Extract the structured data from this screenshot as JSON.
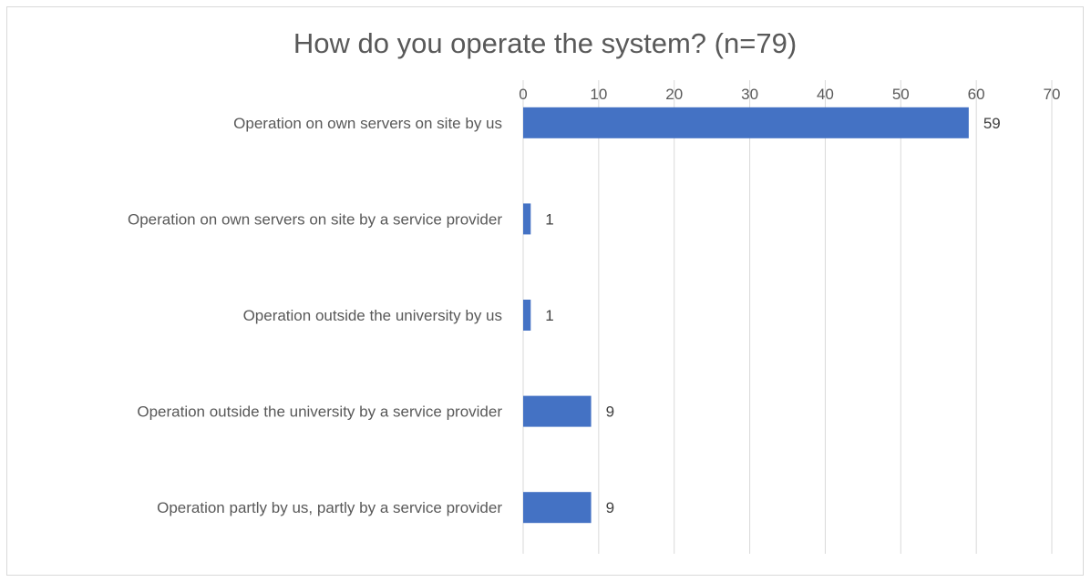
{
  "chart_data": {
    "type": "bar",
    "orientation": "horizontal",
    "title": "How do you operate the system? (n=79)",
    "xlabel": "",
    "ylabel": "",
    "xlim": [
      0,
      70
    ],
    "x_ticks": [
      "0",
      "10",
      "20",
      "30",
      "40",
      "50",
      "60",
      "70"
    ],
    "x_axis_position": "top",
    "grid": true,
    "legend": "none",
    "bar_color": "#4472c4",
    "categories": [
      "Operation on own servers on site by us",
      "Operation on own servers on site by a service provider",
      "Operation outside the university by us",
      "Operation outside the university by a service provider",
      "Operation partly by us, partly by a service provider"
    ],
    "values": [
      59,
      1,
      1,
      9,
      9
    ]
  }
}
